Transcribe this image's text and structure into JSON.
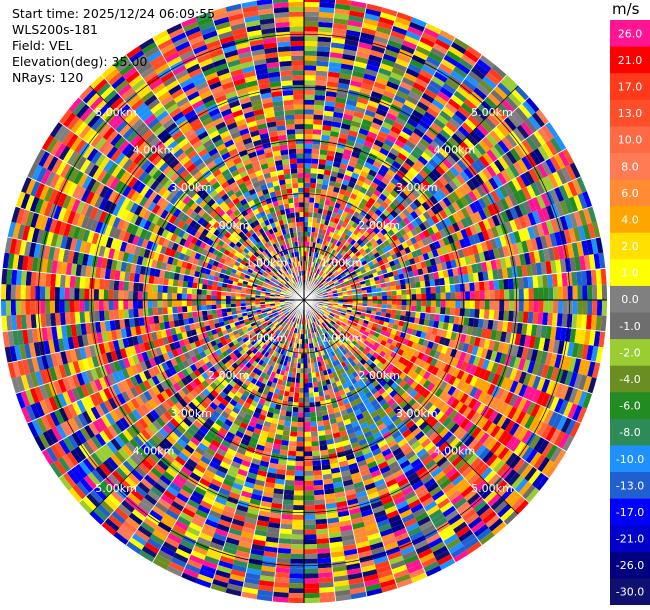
{
  "header": {
    "start_time": "Start time: 2025/12/24 06:09:55",
    "instrument": "WLS200s-181",
    "field": "Field: VEL",
    "elevation": "Elevation(deg): 35.00",
    "nrays": "NRays: 120"
  },
  "chart_data": {
    "type": "heatmap",
    "projection": "polar",
    "field": "VEL",
    "nrays": 120,
    "elevation_deg": 35.0,
    "range_rings_km": [
      1.0,
      2.0,
      3.0,
      4.0,
      5.0
    ],
    "ring_labels": [
      "1.00km",
      "2.00km",
      "3.00km",
      "4.00km",
      "5.00km"
    ],
    "max_range_km": 5.7,
    "spokes_deg": [
      0,
      45,
      90,
      135,
      180,
      225,
      270,
      315
    ],
    "colorbar": {
      "unit": "m/s",
      "ticks": [
        "26.0",
        "21.0",
        "17.0",
        "13.0",
        "10.0",
        "8.0",
        "6.0",
        "4.0",
        "2.0",
        "1.0",
        "0.0",
        "-1.0",
        "-2.0",
        "-4.0",
        "-6.0",
        "-8.0",
        "-10.0",
        "-13.0",
        "-17.0",
        "-21.0",
        "-26.0",
        "-30.0"
      ],
      "colors": [
        "#ff1493",
        "#ff0000",
        "#ff3a1a",
        "#ff4f2a",
        "#ff6a45",
        "#ff7b54",
        "#ff8c33",
        "#ffa500",
        "#ffe000",
        "#ffff00",
        "#808080",
        "#6e6e6e",
        "#9acd32",
        "#6b8e23",
        "#228b22",
        "#2e8b57",
        "#1e90ff",
        "#1f5fd0",
        "#0000ff",
        "#0000cc",
        "#000080",
        "#101070"
      ]
    },
    "sector_features": [
      {
        "description": "coherent positive-velocity streak",
        "azimuth_deg": [
          112,
          128
        ],
        "range_km": [
          0.8,
          5.0
        ],
        "colors": [
          "#ff1493",
          "#ff0000",
          "#ff8c33",
          "#ffa500"
        ]
      },
      {
        "description": "coherent negative-velocity streak",
        "azimuth_deg": [
          140,
          160
        ],
        "range_km": [
          0.6,
          3.0
        ],
        "colors": [
          "#6b8e23",
          "#1e90ff",
          "#1f5fd0"
        ]
      }
    ]
  }
}
